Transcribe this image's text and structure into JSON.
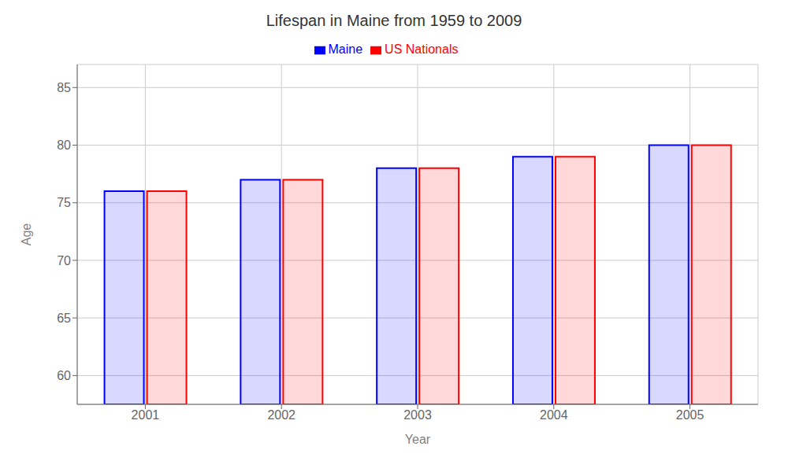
{
  "chart_data": {
    "type": "bar",
    "title": "Lifespan in Maine from 1959 to 2009",
    "x_label": "Year",
    "y_label": "Age",
    "categories": [
      "2001",
      "2002",
      "2003",
      "2004",
      "2005"
    ],
    "series": [
      {
        "name": "Maine",
        "color": "#0000ff",
        "values": [
          76.0,
          77.0,
          78.0,
          79.0,
          80.0
        ]
      },
      {
        "name": "US Nationals",
        "color": "#ff0000",
        "values": [
          76.0,
          77.0,
          78.0,
          79.0,
          80.0
        ]
      }
    ],
    "ylim": [
      57.5,
      87
    ],
    "yticks": [
      60,
      65,
      70,
      75,
      80,
      85
    ],
    "grid": true,
    "legend": "top"
  }
}
